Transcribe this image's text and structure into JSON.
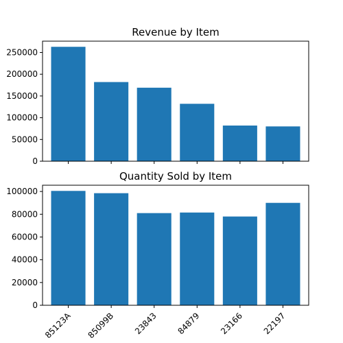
{
  "colors": {
    "bar": "#1f77b4"
  },
  "chart_data": [
    {
      "type": "bar",
      "title": "Revenue by Item",
      "xlabel": "",
      "ylabel": "",
      "categories": [
        "85123A",
        "85099B",
        "23843",
        "84879",
        "23166",
        "22197"
      ],
      "values": [
        263000,
        182000,
        169000,
        132000,
        82000,
        80000
      ],
      "ylim": [
        0,
        276000
      ],
      "yticks": [
        0,
        50000,
        100000,
        150000,
        200000,
        250000
      ],
      "ytick_labels": [
        "0",
        "50000",
        "100000",
        "150000",
        "200000",
        "250000"
      ],
      "show_x_tick_labels": false,
      "grid": false
    },
    {
      "type": "bar",
      "title": "Quantity Sold by Item",
      "xlabel": "",
      "ylabel": "",
      "categories": [
        "85123A",
        "85099B",
        "23843",
        "84879",
        "23166",
        "22197"
      ],
      "values": [
        100500,
        98500,
        81000,
        81500,
        78000,
        90000
      ],
      "ylim": [
        0,
        105500
      ],
      "yticks": [
        0,
        20000,
        40000,
        60000,
        80000,
        100000
      ],
      "ytick_labels": [
        "0",
        "20000",
        "40000",
        "60000",
        "80000",
        "100000"
      ],
      "show_x_tick_labels": true,
      "grid": false
    }
  ]
}
